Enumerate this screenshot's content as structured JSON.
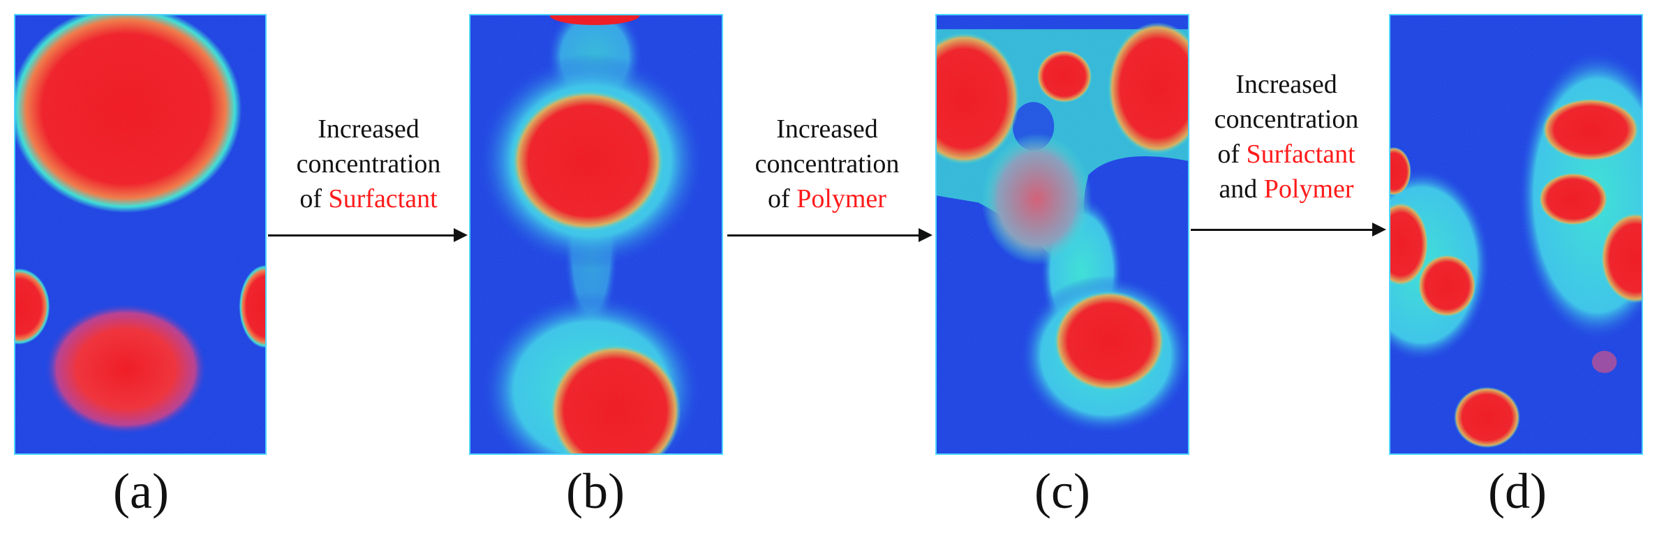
{
  "panels": [
    {
      "label": "(a)"
    },
    {
      "label": "(b)"
    },
    {
      "label": "(c)"
    },
    {
      "label": "(d)"
    }
  ],
  "transitions": [
    {
      "line1": "Increased",
      "line2": "concentration",
      "prefix": "of ",
      "agent1": "Surfactant",
      "joiner": "",
      "agent2": ""
    },
    {
      "line1": "Increased",
      "line2": "concentration",
      "prefix": "of ",
      "agent1": "Polymer",
      "joiner": "",
      "agent2": ""
    },
    {
      "line1": "Increased",
      "line2": "concentration",
      "prefix": "of ",
      "agent1": "Surfactant",
      "joiner": "and ",
      "agent2": "Polymer"
    }
  ],
  "colors": {
    "background": "#1e3fe0",
    "core": "#ff1010",
    "shell": "#3ee6d2",
    "highlight": "#ff1a1a"
  }
}
